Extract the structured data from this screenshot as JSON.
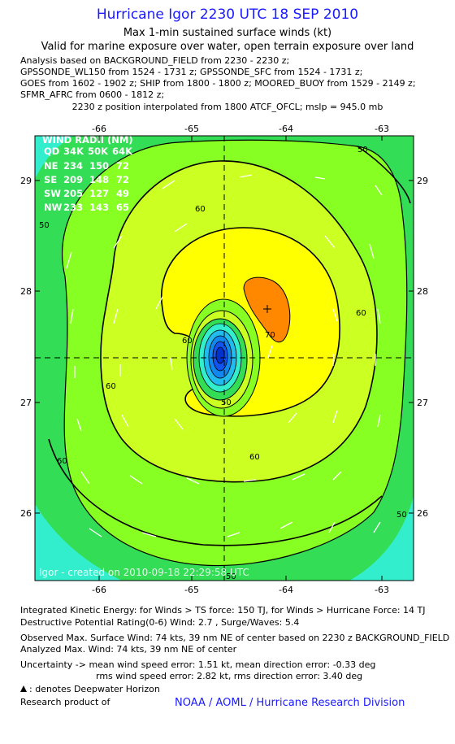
{
  "header": {
    "title": "Hurricane Igor 2230 UTC 18 SEP 2010",
    "subtitle1": "Max 1-min sustained surface winds (kt)",
    "subtitle2": "Valid for marine exposure over water, open terrain exposure over land",
    "analysis_lines": [
      "Analysis based on BACKGROUND_FIELD from 2230 - 2230 z;",
      "GPSSONDE_WL150 from 1524 - 1731 z; GPSSONDE_SFC from 1524 - 1731 z;",
      "GOES from 1602 - 1902 z; SHIP from 1800 - 1800 z; MOORED_BUOY from 1529 - 2149 z;",
      "SFMR_AFRC from 0600 - 1812 z;"
    ],
    "position_line": "2230 z position interpolated from 1800 ATCF_OFCL; mslp = 945.0 mb"
  },
  "map": {
    "x_ticks": [
      "-66",
      "-65",
      "-64",
      "-63"
    ],
    "y_ticks": [
      "29",
      "28",
      "27",
      "26"
    ],
    "credit": "Igor - created on 2010-09-18 22:29:58 UTC",
    "contour_labels": [
      "50",
      "60",
      "60",
      "60",
      "70",
      "60",
      "50",
      "60",
      "50",
      "60",
      "50",
      "50"
    ],
    "colors": {
      "green": "#33dd55",
      "light_green": "#88ff22",
      "yellow_green": "#ccff22",
      "yellow": "#ffff00",
      "orange": "#ff8800",
      "teal": "#33eecc",
      "blue_core": "#1155ee"
    }
  },
  "wind_radii": {
    "title": "WIND RADII (NM)",
    "header": [
      "QD",
      "34K",
      "50K",
      "64K"
    ],
    "rows": [
      [
        "NE",
        "234",
        "150",
        "72"
      ],
      [
        "SE",
        "209",
        "148",
        "72"
      ],
      [
        "SW",
        "205",
        "127",
        "49"
      ],
      [
        "NW",
        "233",
        "143",
        "65"
      ]
    ]
  },
  "footer": {
    "ike": "Integrated Kinetic Energy:  for Winds > TS force: 150 TJ,  for Winds > Hurricane Force: 14 TJ",
    "dpr": "Destructive Potential Rating(0-6)   Wind: 2.7 , Surge/Waves: 5.4",
    "observed": "Observed Max. Surface Wind: 74 kts, 39 nm NE of center based on 2230 z BACKGROUND_FIELD",
    "analyzed": "Analyzed Max. Wind: 74 kts, 39 nm NE of center",
    "uncertainty1": "Uncertainty -> mean wind speed error: 1.51 kt,   mean direction error:  -0.33 deg",
    "uncertainty2": "rms wind speed error: 2.82 kt,   rms direction error: 3.40 deg",
    "deepwater": ": denotes Deepwater Horizon",
    "research": "Research product of",
    "noaa": "NOAA / AOML / Hurricane Research Division"
  }
}
